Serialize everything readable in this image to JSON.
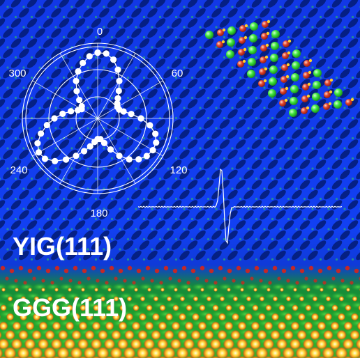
{
  "polar_plot": {
    "angle_labels": [
      "0",
      "60",
      "120",
      "180",
      "240",
      "300"
    ]
  },
  "labels": {
    "top_layer": "YIG(111)",
    "bottom_layer": "GGG(111)"
  },
  "colors": {
    "lattice_blue": "#0b3df0",
    "dark_spot": "#031b72",
    "spot_green": "#2fc73a",
    "spot_yellow": "#ffd02a",
    "spot_red": "#d8241a",
    "atom_green": "#3ee63e",
    "atom_red": "#e2442c",
    "trace_white": "#ffffff"
  }
}
